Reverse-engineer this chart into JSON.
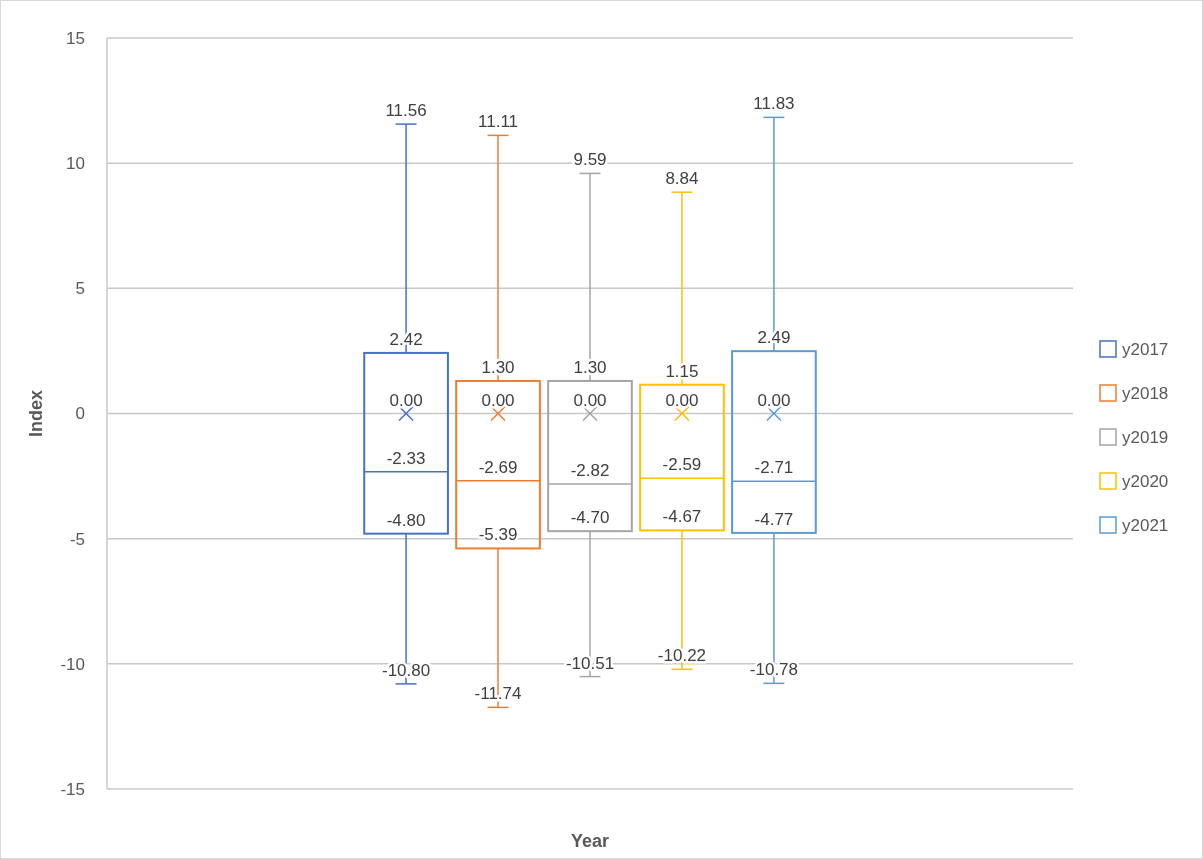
{
  "chart_data": {
    "type": "box",
    "xlabel": "Year",
    "ylabel": "Index",
    "categories": [
      null
    ],
    "ylim": [
      -15,
      15
    ],
    "yticks": [
      -15,
      -10,
      -5,
      0,
      5,
      10,
      15
    ],
    "grid": "y",
    "legend": "right",
    "series": [
      {
        "name": "y2017",
        "color": "#4472c4",
        "boxes": [
          {
            "low": -10.8,
            "q1": -4.8,
            "median": -2.33,
            "q3": 2.42,
            "high": 11.56,
            "mean": 0
          }
        ],
        "value_labels": [
          [
            "11.56",
            "2.42",
            "0.00",
            "-2.33",
            "-4.80",
            "-10.80"
          ]
        ]
      },
      {
        "name": "y2018",
        "color": "#ed7d31",
        "boxes": [
          {
            "low": -11.74,
            "q1": -5.39,
            "median": -2.69,
            "q3": 1.3,
            "high": 11.11,
            "mean": 0
          }
        ],
        "value_labels": [
          [
            "11.11",
            "1.30",
            "0.00",
            "-2.69",
            "-5.39",
            "-11.74"
          ]
        ]
      },
      {
        "name": "y2019",
        "color": "#a5a5a5",
        "boxes": [
          {
            "low": -10.51,
            "q1": -4.7,
            "median": -2.82,
            "q3": 1.3,
            "high": 9.59,
            "mean": 0
          }
        ],
        "value_labels": [
          [
            "9.59",
            "1.30",
            "0.00",
            "-2.82",
            "-4.70",
            "-10.51"
          ]
        ]
      },
      {
        "name": "y2020",
        "color": "#ffc000",
        "boxes": [
          {
            "low": -10.22,
            "q1": -4.67,
            "median": -2.59,
            "q3": 1.15,
            "high": 8.84,
            "mean": 0
          }
        ],
        "value_labels": [
          [
            "8.84",
            "1.15",
            "0.00",
            "-2.59",
            "-4.67",
            "-10.22"
          ]
        ]
      },
      {
        "name": "y2021",
        "color": "#5b9bd5",
        "boxes": [
          {
            "low": -10.78,
            "q1": -4.77,
            "median": -2.71,
            "q3": 2.49,
            "high": 11.83,
            "mean": 0
          }
        ],
        "value_labels": [
          [
            "11.83",
            "2.49",
            "0.00",
            "-2.71",
            "-4.77",
            "-10.78"
          ]
        ]
      }
    ]
  }
}
